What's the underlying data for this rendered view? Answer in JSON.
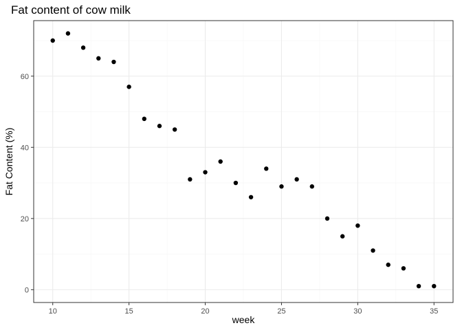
{
  "chart_data": {
    "type": "scatter",
    "title": "Fat content of cow milk",
    "xlabel": "week",
    "ylabel": "Fat Content (%)",
    "xlim": [
      8.75,
      36.25
    ],
    "ylim": [
      -3.6,
      75.6
    ],
    "x_ticks": [
      10,
      15,
      20,
      25,
      30,
      35
    ],
    "y_ticks": [
      0,
      20,
      40,
      60
    ],
    "grid": true,
    "legend": "none",
    "colors": {
      "point": "#000000",
      "panel_border": "#333333",
      "grid_major": "#ebebeb",
      "grid_minor": "#f5f5f5"
    },
    "x": [
      10,
      11,
      12,
      13,
      14,
      15,
      16,
      17,
      18,
      19,
      20,
      21,
      22,
      23,
      24,
      25,
      26,
      27,
      28,
      29,
      30,
      31,
      32,
      33,
      34,
      35
    ],
    "y": [
      70,
      72,
      68,
      65,
      64,
      57,
      48,
      46,
      45,
      31,
      33,
      36,
      30,
      26,
      34,
      29,
      31,
      29,
      20,
      15,
      18,
      11,
      7,
      6,
      1,
      1
    ]
  }
}
